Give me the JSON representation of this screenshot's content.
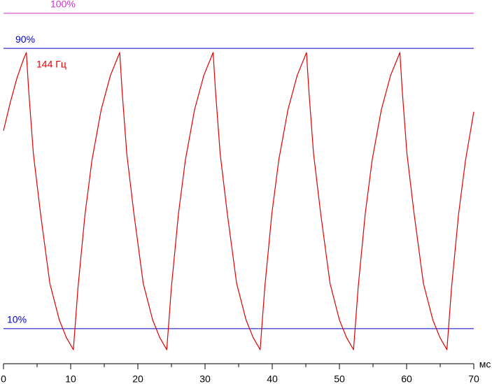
{
  "chart_data": {
    "type": "line",
    "xlabel": "мс",
    "xlim": [
      0,
      70
    ],
    "xticks": [
      0,
      10,
      20,
      30,
      40,
      50,
      60,
      70
    ],
    "xminor_ticks": [
      5,
      15,
      25,
      35,
      45,
      55,
      65
    ],
    "ylim": [
      0,
      100
    ],
    "reference_lines": [
      {
        "value": 100,
        "label": "100%",
        "color": "#cc33cc"
      },
      {
        "value": 90,
        "label": "90%",
        "color": "#0000cc"
      },
      {
        "value": 10,
        "label": "10%",
        "color": "#0000cc"
      }
    ],
    "x": [
      0,
      1,
      2,
      3,
      3.4,
      3.75,
      4.45,
      5.5,
      6.9,
      8.3,
      9.35,
      10.4,
      11.09,
      12.13,
      13.16,
      14.54,
      15.92,
      17.3,
      17.65,
      18.35,
      19.4,
      20.8,
      22.2,
      23.25,
      24.3,
      24.99,
      26.03,
      27.06,
      28.44,
      29.82,
      31.2,
      31.55,
      32.25,
      33.3,
      34.7,
      36.1,
      37.15,
      38.2,
      38.89,
      39.93,
      40.96,
      42.34,
      43.72,
      45.1,
      45.45,
      46.15,
      47.2,
      48.6,
      50.0,
      51.05,
      52.1,
      52.79,
      53.83,
      54.86,
      56.24,
      57.62,
      59.0,
      59.35,
      60.05,
      61.1,
      62.5,
      63.9,
      64.95,
      66.0,
      66.69,
      67.73,
      68.76,
      70
    ],
    "series": [
      {
        "name": "144 Гц",
        "color": "#e00000",
        "values": [
          66.5,
          74.5,
          81.5,
          87.0,
          88.8,
          77.9,
          59.9,
          43.0,
          22.9,
          12.5,
          7.5,
          4.0,
          21.8,
          42.6,
          58.0,
          72.5,
          82.3,
          88.8,
          77.9,
          59.9,
          43.0,
          22.9,
          12.5,
          7.5,
          4.0,
          21.8,
          42.6,
          58.0,
          72.5,
          82.3,
          88.8,
          77.9,
          59.9,
          43.0,
          22.9,
          12.5,
          7.5,
          4.0,
          21.8,
          42.6,
          58.0,
          72.5,
          82.3,
          88.8,
          77.9,
          59.9,
          43.0,
          22.9,
          12.5,
          7.5,
          4.0,
          21.8,
          42.6,
          58.0,
          72.5,
          82.3,
          88.8,
          77.9,
          59.9,
          43.0,
          22.9,
          12.5,
          7.5,
          4.0,
          21.8,
          42.6,
          58.0,
          71.9
        ]
      }
    ]
  }
}
